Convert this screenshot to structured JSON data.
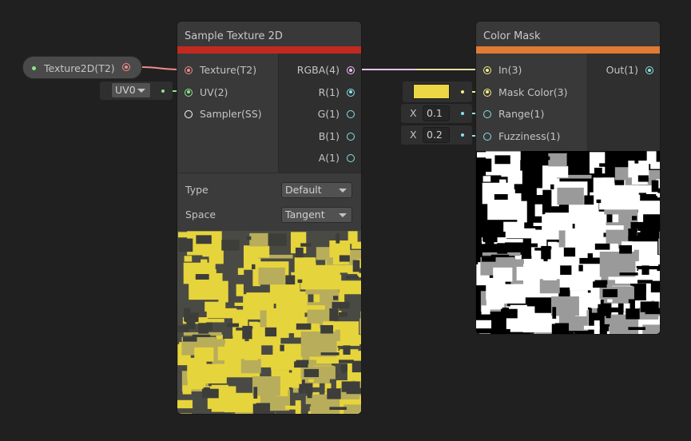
{
  "property_node": {
    "label": "Texture2D(T2)"
  },
  "uv_input": {
    "value": "UV0"
  },
  "sample_texture": {
    "title": "Sample Texture 2D",
    "accent": "#c4291f",
    "inputs": [
      {
        "label": "Texture(T2)",
        "color": "#f28a8a"
      },
      {
        "label": "UV(2)",
        "color": "#8ae68a"
      },
      {
        "label": "Sampler(SS)",
        "color": "#ffffff"
      }
    ],
    "outputs": [
      {
        "label": "RGBA(4)",
        "color": "#f0c0f0"
      },
      {
        "label": "R(1)",
        "color": "#84e4e7"
      },
      {
        "label": "G(1)",
        "color": "#84e4e7"
      },
      {
        "label": "B(1)",
        "color": "#84e4e7"
      },
      {
        "label": "A(1)",
        "color": "#84e4e7"
      }
    ],
    "settings": [
      {
        "label": "Type",
        "value": "Default"
      },
      {
        "label": "Space",
        "value": "Tangent"
      }
    ]
  },
  "color_mask": {
    "title": "Color Mask",
    "accent": "#e07a35",
    "inputs": [
      {
        "label": "In(3)",
        "color": "#f2f28a"
      },
      {
        "label": "Mask Color(3)",
        "color": "#f2f28a"
      },
      {
        "label": "Range(1)",
        "color": "#84e4e7"
      },
      {
        "label": "Fuzziness(1)",
        "color": "#84e4e7"
      }
    ],
    "outputs": [
      {
        "label": "Out(1)",
        "color": "#84e4e7"
      }
    ],
    "mask_color": "#ecd645",
    "range": {
      "axis": "X",
      "value": "0.1"
    },
    "fuzziness": {
      "axis": "X",
      "value": "0.2"
    }
  }
}
